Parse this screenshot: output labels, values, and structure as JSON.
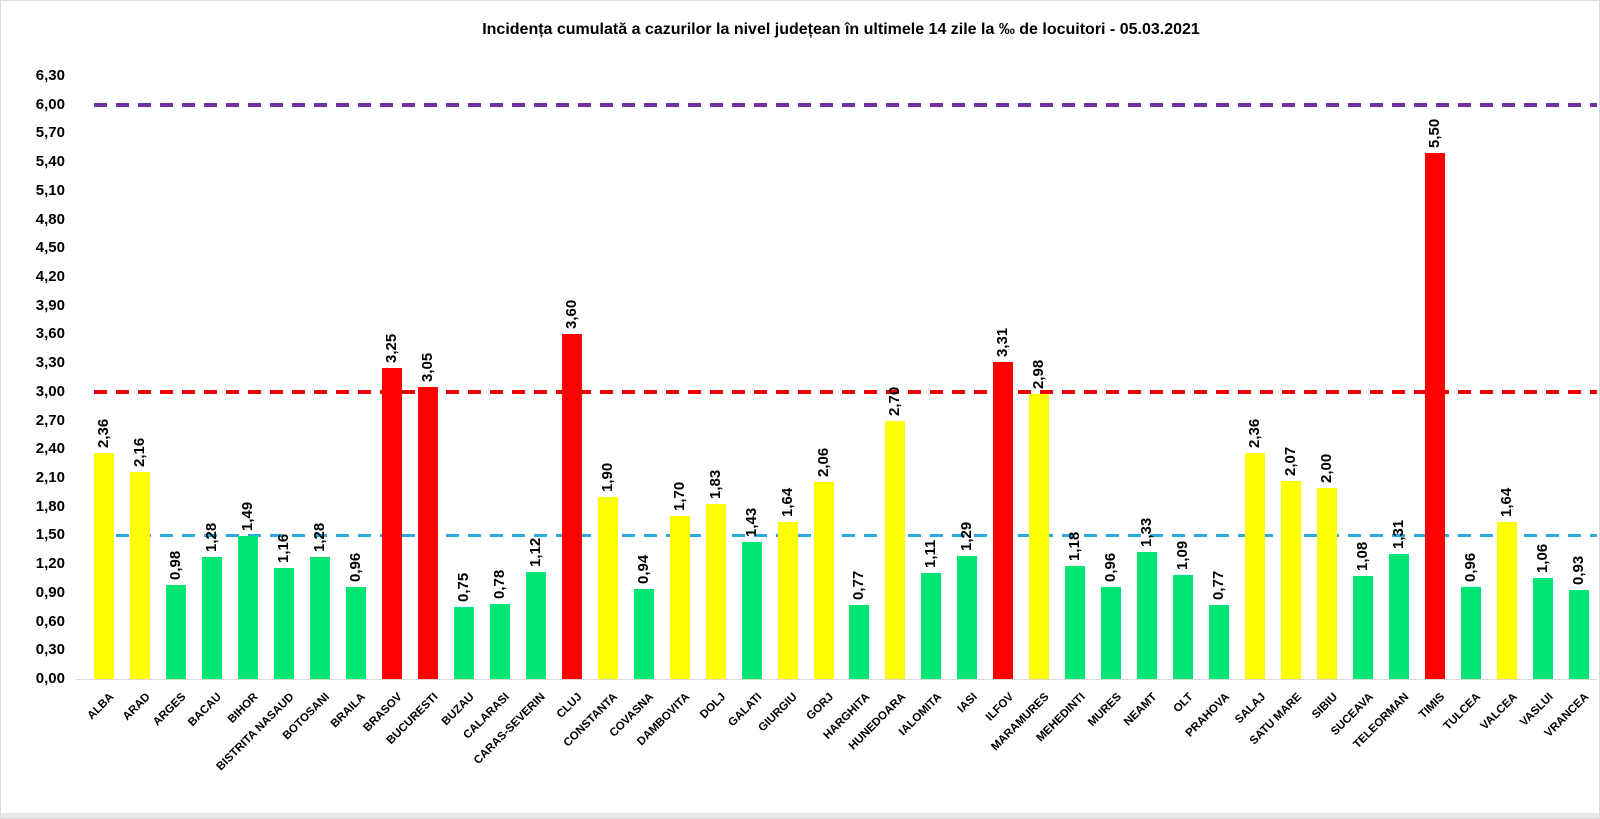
{
  "title": "Incidența cumulată a cazurilor la nivel județean în ultimele 14 zile la ‰ de locuitori - 05.03.2021",
  "chart_data": {
    "type": "bar",
    "title": "Incidența cumulată a cazurilor la nivel județean în ultimele 14 zile la ‰ de locuitori - 05.03.2021",
    "xlabel": "",
    "ylabel": "",
    "ylim": [
      0,
      6.3
    ],
    "ytick_step": 0.3,
    "ytick_labels": [
      "0,00",
      "0,30",
      "0,60",
      "0,90",
      "1,20",
      "1,50",
      "1,80",
      "2,10",
      "2,40",
      "2,70",
      "3,00",
      "3,30",
      "3,60",
      "3,90",
      "4,20",
      "4,50",
      "4,80",
      "5,10",
      "5,40",
      "5,70",
      "6,00",
      "6,30"
    ],
    "grid": false,
    "legend": "none",
    "categories": [
      "ALBA",
      "ARAD",
      "ARGES",
      "BACAU",
      "BIHOR",
      "BISTRITA NASAUD",
      "BOTOSANI",
      "BRAILA",
      "BRASOV",
      "BUCURESTI",
      "BUZAU",
      "CALARASI",
      "CARAS-SEVERIN",
      "CLUJ",
      "CONSTANTA",
      "COVASNA",
      "DAMBOVITA",
      "DOLJ",
      "GALATI",
      "GIURGIU",
      "GORJ",
      "HARGHITA",
      "HUNEDOARA",
      "IALOMITA",
      "IASI",
      "ILFOV",
      "MARAMURES",
      "MEHEDINTI",
      "MURES",
      "NEAMT",
      "OLT",
      "PRAHOVA",
      "SALAJ",
      "SATU MARE",
      "SIBIU",
      "SUCEAVA",
      "TELEORMAN",
      "TIMIS",
      "TULCEA",
      "VALCEA",
      "VASLUI",
      "VRANCEA"
    ],
    "values": [
      2.36,
      2.16,
      0.98,
      1.28,
      1.49,
      1.16,
      1.28,
      0.96,
      3.25,
      3.05,
      0.75,
      0.78,
      1.12,
      3.6,
      1.9,
      0.94,
      1.7,
      1.83,
      1.43,
      1.64,
      2.06,
      0.77,
      2.7,
      1.11,
      1.29,
      3.31,
      2.98,
      1.18,
      0.96,
      1.33,
      1.09,
      0.77,
      2.36,
      2.07,
      2.0,
      1.08,
      1.31,
      5.5,
      0.96,
      1.64,
      1.06,
      0.93
    ],
    "value_labels": [
      "2,36",
      "2,16",
      "0,98",
      "1,28",
      "1,49",
      "1,16",
      "1,28",
      "0,96",
      "3,25",
      "3,05",
      "0,75",
      "0,78",
      "1,12",
      "3,60",
      "1,90",
      "0,94",
      "1,70",
      "1,83",
      "1,43",
      "1,64",
      "2,06",
      "0,77",
      "2,70",
      "1,11",
      "1,29",
      "3,31",
      "2,98",
      "1,18",
      "0,96",
      "1,33",
      "1,09",
      "0,77",
      "2,36",
      "2,07",
      "2,00",
      "1,08",
      "1,31",
      "5,50",
      "0,96",
      "1,64",
      "1,06",
      "0,93"
    ],
    "color_rule": {
      "green_if_below": 1.5,
      "yellow_if_below": 3.0,
      "red_if_at_or_above": 3.0
    },
    "colors": {
      "green": "#00E673",
      "yellow": "#FFFF00",
      "red": "#FF0000"
    },
    "reference_lines": [
      {
        "value": 6.0,
        "color": "#7030A0",
        "style": "dashed",
        "thickness": 4
      },
      {
        "value": 3.0,
        "color": "#F00000",
        "style": "dashed",
        "thickness": 4
      },
      {
        "value": 1.5,
        "color": "#29ABE2",
        "style": "dashed",
        "thickness": 3
      }
    ]
  }
}
